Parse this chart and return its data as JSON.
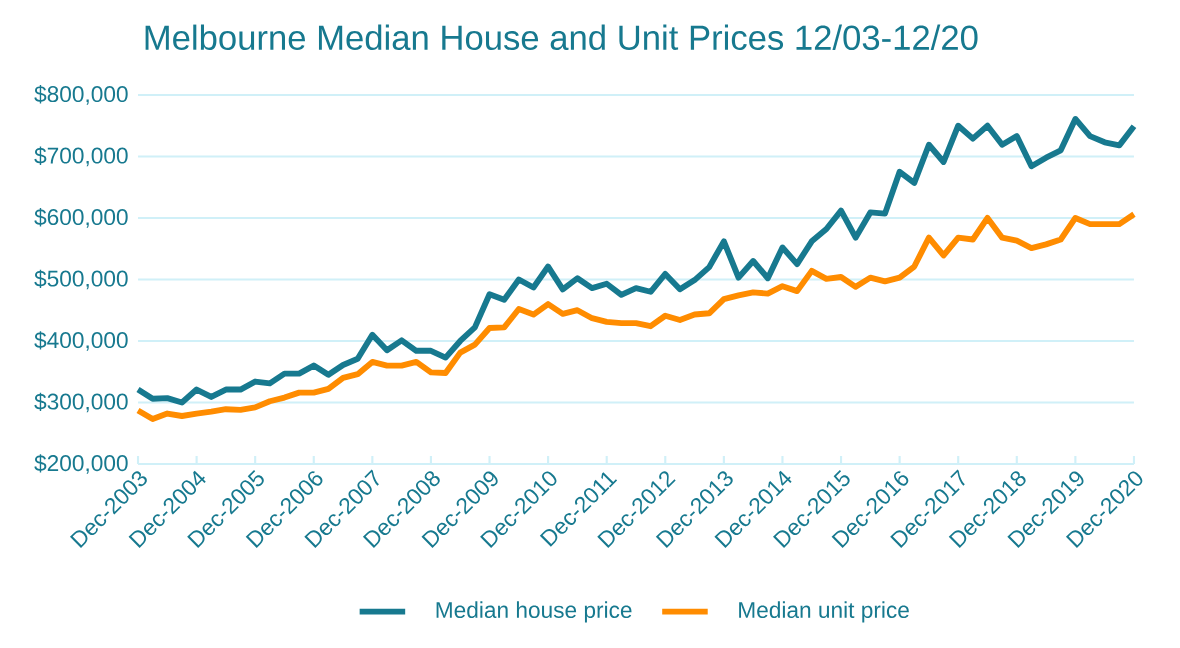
{
  "chart_data": {
    "type": "line",
    "title": "Melbourne Median House and Unit Prices 12/03-12/20",
    "categories": [
      "Dec-2003",
      null,
      null,
      null,
      "Dec-2004",
      null,
      null,
      null,
      "Dec-2005",
      null,
      null,
      null,
      "Dec-2006",
      null,
      null,
      null,
      "Dec-2007",
      null,
      null,
      null,
      "Dec-2008",
      null,
      null,
      null,
      "Dec-2009",
      null,
      null,
      null,
      "Dec-2010",
      null,
      null,
      null,
      "Dec-2011",
      null,
      null,
      null,
      "Dec-2012",
      null,
      null,
      null,
      "Dec-2013",
      null,
      null,
      null,
      "Dec-2014",
      null,
      null,
      null,
      "Dec-2015",
      null,
      null,
      null,
      "Dec-2016",
      null,
      null,
      null,
      "Dec-2017",
      null,
      null,
      null,
      "Dec-2018",
      null,
      null,
      null,
      "Dec-2019",
      null,
      null,
      null,
      "Dec-2020"
    ],
    "series": [
      {
        "name": "Median house price",
        "color": "#17798f",
        "values": [
          321000,
          306000,
          307000,
          300000,
          321000,
          309000,
          321000,
          321000,
          334000,
          331000,
          347000,
          347000,
          360000,
          345000,
          361000,
          371000,
          410000,
          385000,
          401000,
          384000,
          384000,
          373000,
          400000,
          422000,
          476000,
          467000,
          500000,
          487000,
          521000,
          484000,
          502000,
          486000,
          493000,
          475000,
          486000,
          480000,
          509000,
          484000,
          499000,
          520000,
          562000,
          503000,
          530000,
          502000,
          552000,
          525000,
          562000,
          582000,
          612000,
          568000,
          609000,
          607000,
          675000,
          657000,
          719000,
          691000,
          750000,
          729000,
          750000,
          719000,
          733000,
          684000,
          698000,
          710000,
          761000,
          733000,
          723000,
          718000,
          749000
        ]
      },
      {
        "name": "Median unit price",
        "color": "#ff8c00",
        "values": [
          287000,
          273000,
          282000,
          278000,
          282000,
          285000,
          289000,
          288000,
          292000,
          302000,
          308000,
          316000,
          316000,
          322000,
          340000,
          346000,
          366000,
          360000,
          360000,
          366000,
          349000,
          348000,
          381000,
          394000,
          421000,
          422000,
          452000,
          443000,
          460000,
          444000,
          450000,
          437000,
          431000,
          429000,
          429000,
          424000,
          441000,
          434000,
          443000,
          445000,
          468000,
          474000,
          479000,
          477000,
          489000,
          481000,
          514000,
          501000,
          504000,
          488000,
          503000,
          497000,
          503000,
          521000,
          568000,
          539000,
          568000,
          565000,
          600000,
          568000,
          563000,
          551000,
          557000,
          565000,
          600000,
          590000,
          590000,
          590000,
          606000
        ]
      }
    ],
    "ylim": [
      200000,
      800000
    ],
    "yticks": [
      {
        "value": 200000,
        "label": "$200,000"
      },
      {
        "value": 300000,
        "label": "$300,000"
      },
      {
        "value": 400000,
        "label": "$400,000"
      },
      {
        "value": 500000,
        "label": "$500,000"
      },
      {
        "value": 600000,
        "label": "$600,000"
      },
      {
        "value": 700000,
        "label": "$700,000"
      },
      {
        "value": 800000,
        "label": "$800,000"
      }
    ],
    "grid": "y",
    "legend": "bottom",
    "marker": "none",
    "line_style": "solid"
  }
}
